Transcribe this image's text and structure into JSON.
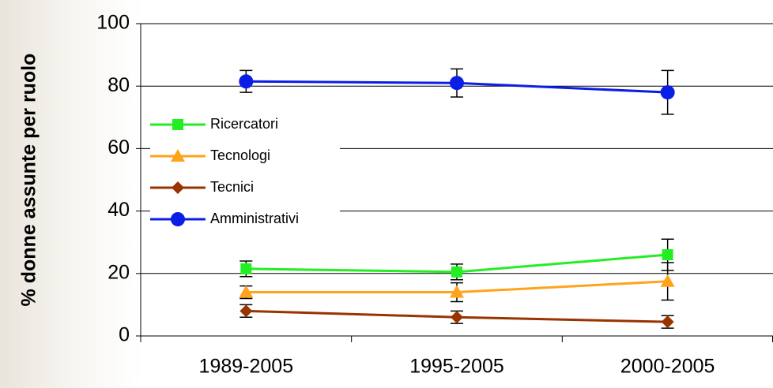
{
  "chart_data": {
    "type": "line",
    "ylabel": "% donne assunte per ruolo",
    "categories": [
      "1989-2005",
      "1995-2005",
      "2000-2005"
    ],
    "series": [
      {
        "name": "Ricercatori",
        "color": "#22ee22",
        "marker": "square",
        "values": [
          21.5,
          20.5,
          26
        ],
        "errors": [
          2.5,
          2.5,
          5
        ]
      },
      {
        "name": "Tecnologi",
        "color": "#ffa31a",
        "marker": "triangle",
        "values": [
          14,
          14,
          17.5
        ],
        "errors": [
          2,
          3,
          6
        ]
      },
      {
        "name": "Tecnici",
        "color": "#993300",
        "marker": "diamond",
        "values": [
          8,
          6,
          4.5
        ],
        "errors": [
          2,
          2,
          2
        ]
      },
      {
        "name": "Amministrativi",
        "color": "#0a1ee6",
        "marker": "circle",
        "values": [
          81.5,
          81,
          78
        ],
        "errors": [
          3.5,
          4.5,
          7
        ]
      }
    ],
    "ylim": [
      0,
      100
    ],
    "yticks": [
      0,
      20,
      40,
      60,
      80,
      100
    ],
    "grid": true,
    "legend": "left"
  }
}
